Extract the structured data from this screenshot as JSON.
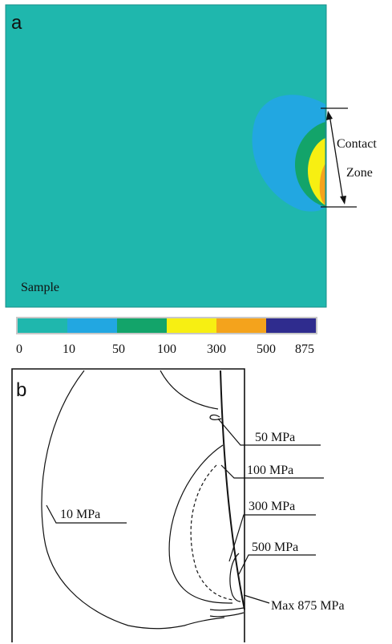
{
  "panel_a": {
    "letter": "a",
    "sample_label": "Sample",
    "contact_label_line1": "Contact",
    "contact_label_line2": "Zone",
    "colors": {
      "background": "#1fb7ad",
      "band_10": "#22a7e1",
      "band_50": "#13a46a",
      "band_100": "#f7ef12",
      "band_300": "#f4a31c",
      "band_500": "#2f2c8e"
    }
  },
  "color_scale": {
    "ticks": [
      "0",
      "10",
      "50",
      "100",
      "300",
      "500",
      "875"
    ]
  },
  "panel_b": {
    "letter": "b",
    "labels": {
      "mpa10": "10 MPa",
      "mpa50": "50 MPa",
      "mpa100": "100 MPa",
      "mpa300": "300 MPa",
      "mpa500": "500 MPa",
      "max": "Max 875 MPa"
    }
  }
}
